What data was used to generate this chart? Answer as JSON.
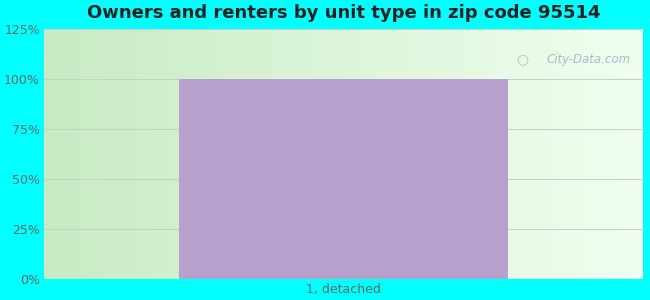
{
  "title": "Owners and renters by unit type in zip code 95514",
  "categories": [
    "1, detached"
  ],
  "values": [
    100
  ],
  "bar_color": "#b8a0cc",
  "ylim": [
    0,
    125
  ],
  "yticks": [
    0,
    25,
    50,
    75,
    100,
    125
  ],
  "ytick_labels": [
    "0%",
    "25%",
    "50%",
    "75%",
    "100%",
    "125%"
  ],
  "outer_bg": "#00ffff",
  "title_fontsize": 13,
  "title_color": "#222222",
  "tick_color": "#666666",
  "grid_color": "#cccccc",
  "watermark_text": "City-Data.com",
  "watermark_color": "#a8bcc8",
  "bar_width": 0.55,
  "plot_bg_colors": [
    "#c8ecc0",
    "#edfaed",
    "#f8fff8"
  ],
  "figsize": [
    6.5,
    3.0
  ],
  "dpi": 100
}
